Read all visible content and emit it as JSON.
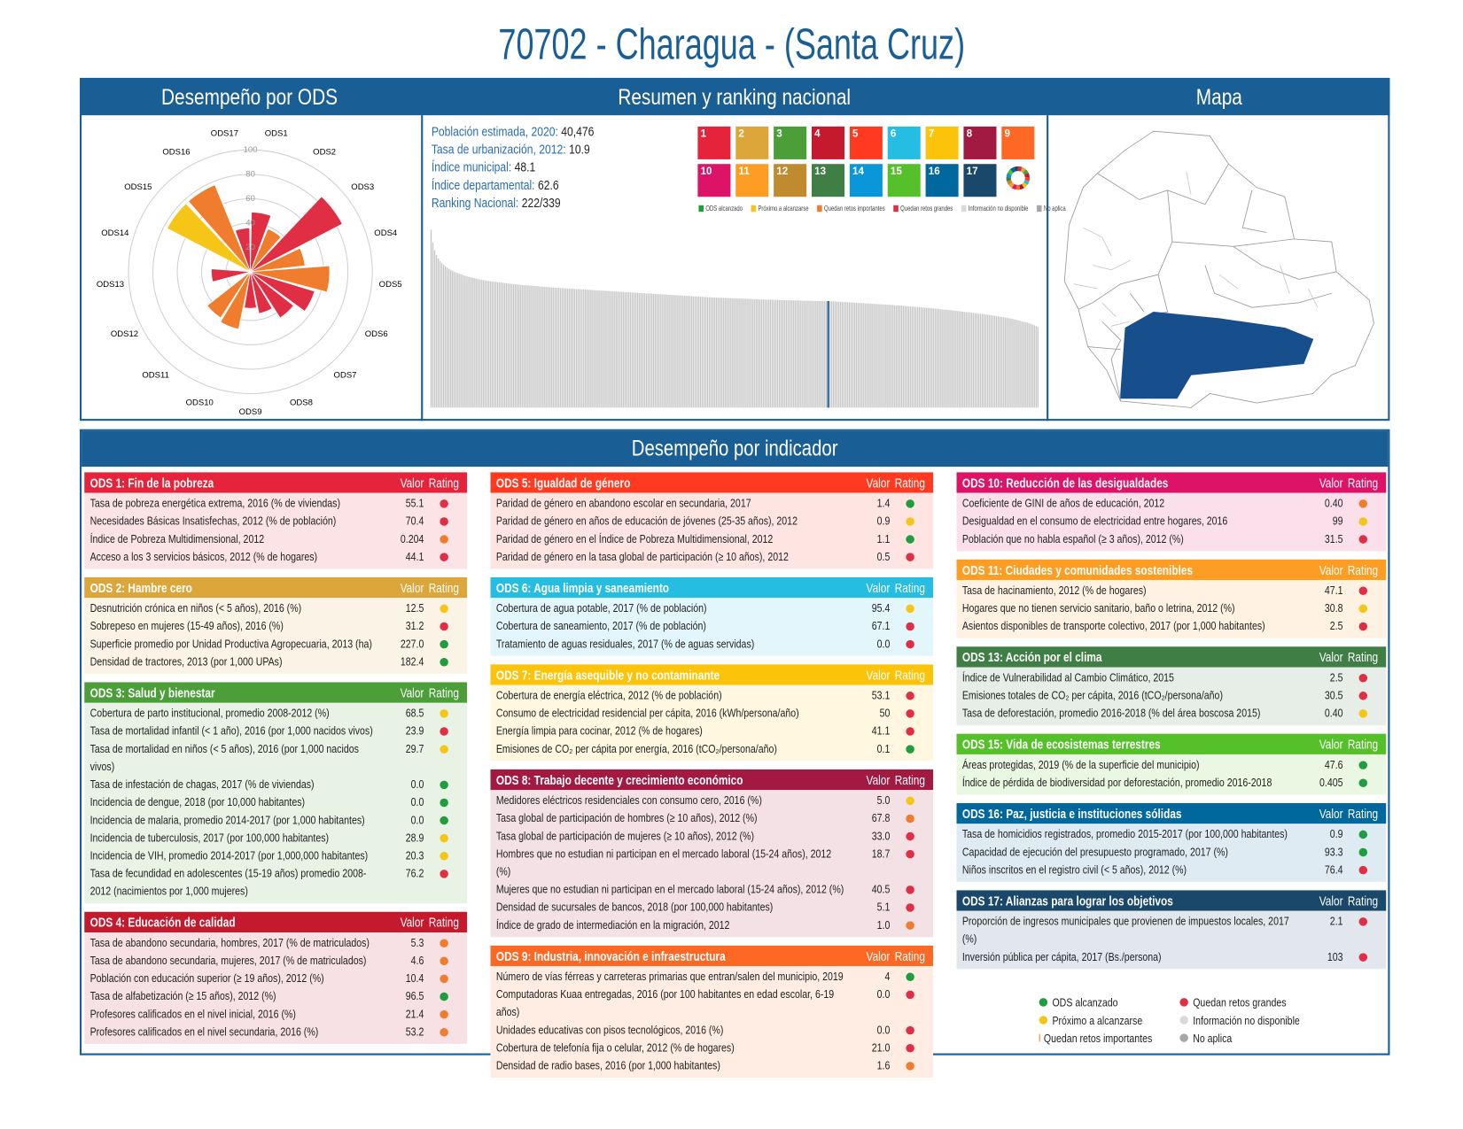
{
  "header": {
    "title": "70702 - Charagua - (Santa Cruz)"
  },
  "panels": {
    "ods": "Desempeño por ODS",
    "summary": "Resumen y ranking nacional",
    "map": "Mapa",
    "indicators": "Desempeño por indicador"
  },
  "summary": [
    {
      "label": "Población estimada, 2020:",
      "value": "40,476"
    },
    {
      "label": "Tasa de urbanización, 2012:",
      "value": "10.9"
    },
    {
      "label": "Índice municipal:",
      "value": "48.1"
    },
    {
      "label": "Índice departamental:",
      "value": "62.6"
    },
    {
      "label": "Ranking Nacional:",
      "value": "222/339"
    }
  ],
  "sdg_icons": [
    {
      "number": "1",
      "color": "#e5243b"
    },
    {
      "number": "2",
      "color": "#dda63a"
    },
    {
      "number": "3",
      "color": "#4c9f38"
    },
    {
      "number": "4",
      "color": "#c5192d"
    },
    {
      "number": "5",
      "color": "#ff3a21"
    },
    {
      "number": "6",
      "color": "#26bde2"
    },
    {
      "number": "7",
      "color": "#fcc30b"
    },
    {
      "number": "8",
      "color": "#a21942"
    },
    {
      "number": "9",
      "color": "#fd6925"
    },
    {
      "number": "10",
      "color": "#dd1367"
    },
    {
      "number": "11",
      "color": "#fd9d24"
    },
    {
      "number": "12",
      "color": "#bf8b2e"
    },
    {
      "number": "13",
      "color": "#3f7e44"
    },
    {
      "number": "14",
      "color": "#0a97d9"
    },
    {
      "number": "15",
      "color": "#56c02b"
    },
    {
      "number": "16",
      "color": "#00689d"
    },
    {
      "number": "17",
      "color": "#19486a"
    }
  ],
  "legend": [
    {
      "label": "ODS alcanzado",
      "color": "#1e9e3e"
    },
    {
      "label": "Próximo a alcanzarse",
      "color": "#f5c518"
    },
    {
      "label": "Quedan retos importantes",
      "color": "#ef7d2d"
    },
    {
      "label": "Quedan retos grandes",
      "color": "#e02f44"
    },
    {
      "label": "Información no disponible",
      "color": "#d9d9d9"
    },
    {
      "label": "No aplica",
      "color": "#a6a6a6"
    }
  ],
  "chart_data": [
    {
      "type": "polar-bar",
      "categories": [
        "ODS1",
        "ODS2",
        "ODS3",
        "ODS4",
        "ODS5",
        "ODS6",
        "ODS7",
        "ODS8",
        "ODS9",
        "ODS10",
        "ODS11",
        "ODS12",
        "ODS13",
        "ODS14",
        "ODS15",
        "ODS16",
        "ODS17"
      ],
      "values": [
        49,
        38,
        85,
        45,
        65,
        55,
        45,
        35,
        30,
        48,
        45,
        null,
        32,
        null,
        77,
        77,
        36
      ],
      "colors": [
        "#e02f44",
        "#ef7d2d",
        "#e02f44",
        "#ef7d2d",
        "#ef7d2d",
        "#e02f44",
        "#e02f44",
        "#e02f44",
        "#e02f44",
        "#ef7d2d",
        "#ef7d2d",
        null,
        "#e02f44",
        null,
        "#f5c518",
        "#ef7d2d",
        "#e02f44"
      ],
      "ylim": [
        0,
        100
      ],
      "yticks": [
        20,
        40,
        60,
        80,
        100
      ]
    },
    {
      "type": "bar",
      "color": "#c8c8c8",
      "highlight_color": "#1a5e96",
      "ylim": [
        0,
        90
      ],
      "values": [
        80.2,
        74.5,
        71.0,
        68.8,
        67.3,
        66.1,
        65.2,
        64.4,
        63.7,
        63.1,
        62.6,
        62.1,
        61.7,
        61.3,
        60.9,
        60.6,
        60.3,
        60.0,
        59.7,
        59.4,
        59.2,
        59.0,
        58.8,
        58.6,
        58.4,
        58.2,
        58.0,
        57.8,
        57.7,
        57.5,
        57.4,
        57.2,
        57.1,
        57.0,
        56.9,
        56.8,
        56.7,
        56.6,
        56.5,
        56.4,
        56.3,
        56.2,
        56.1,
        56.0,
        55.9,
        55.8,
        55.7,
        55.6,
        55.5,
        55.4,
        55.4,
        55.3,
        55.2,
        55.2,
        55.1,
        55.0,
        55.0,
        54.9,
        54.8,
        54.8,
        54.7,
        54.6,
        54.6,
        54.5,
        54.4,
        54.4,
        54.3,
        54.2,
        54.2,
        54.1,
        54.0,
        54.0,
        53.9,
        53.9,
        53.8,
        53.8,
        53.7,
        53.7,
        53.6,
        53.6,
        53.5,
        53.5,
        53.4,
        53.4,
        53.3,
        53.3,
        53.2,
        53.2,
        53.1,
        53.1,
        53.0,
        53.0,
        52.9,
        52.9,
        52.8,
        52.8,
        52.7,
        52.7,
        52.6,
        52.6,
        52.5,
        52.5,
        52.4,
        52.4,
        52.3,
        52.3,
        52.2,
        52.2,
        52.1,
        52.1,
        52.0,
        52.0,
        51.9,
        51.9,
        51.8,
        51.8,
        51.7,
        51.7,
        51.6,
        51.6,
        51.5,
        51.5,
        51.4,
        51.4,
        51.3,
        51.3,
        51.2,
        51.2,
        51.1,
        51.1,
        51.0,
        51.0,
        50.9,
        50.9,
        50.8,
        50.8,
        50.7,
        50.7,
        50.6,
        50.6,
        50.5,
        50.5,
        50.4,
        50.4,
        50.3,
        50.3,
        50.2,
        50.2,
        50.1,
        50.1,
        50.0,
        50.0,
        49.9,
        49.9,
        49.8,
        49.8,
        49.7,
        49.7,
        49.7,
        49.6,
        49.6,
        49.6,
        49.5,
        49.5,
        49.5,
        49.4,
        49.4,
        49.4,
        49.3,
        49.3,
        49.3,
        49.2,
        49.2,
        49.2,
        49.1,
        49.1,
        49.1,
        49.0,
        49.0,
        49.0,
        48.9,
        48.9,
        48.9,
        48.8,
        48.8,
        48.8,
        48.7,
        48.7,
        48.7,
        48.7,
        48.6,
        48.6,
        48.6,
        48.6,
        48.5,
        48.5,
        48.5,
        48.5,
        48.4,
        48.4,
        48.4,
        48.4,
        48.3,
        48.3,
        48.3,
        48.3,
        48.3,
        48.2,
        48.2,
        48.2,
        48.2,
        48.2,
        48.2,
        48.1,
        48.1,
        48.1,
        48.1,
        48.1,
        48.1,
        48.1,
        48.1,
        48.1,
        48.0,
        48.0,
        47.9,
        47.9,
        47.8,
        47.8,
        47.7,
        47.7,
        47.6,
        47.6,
        47.5,
        47.5,
        47.4,
        47.4,
        47.3,
        47.3,
        47.2,
        47.2,
        47.1,
        47.1,
        47.0,
        47.0,
        46.9,
        46.9,
        46.8,
        46.8,
        46.7,
        46.7,
        46.6,
        46.6,
        46.5,
        46.5,
        46.4,
        46.4,
        46.3,
        46.3,
        46.2,
        46.1,
        46.1,
        46.0,
        46.0,
        45.9,
        45.8,
        45.8,
        45.7,
        45.6,
        45.6,
        45.5,
        45.4,
        45.4,
        45.3,
        45.2,
        45.2,
        45.1,
        45.0,
        44.9,
        44.9,
        44.8,
        44.7,
        44.6,
        44.6,
        44.5,
        44.4,
        44.3,
        44.2,
        44.2,
        44.1,
        44.0,
        43.9,
        43.8,
        43.7,
        43.6,
        43.5,
        43.4,
        43.3,
        43.2,
        43.1,
        43.0,
        42.9,
        42.8,
        42.7,
        42.6,
        42.5,
        42.4,
        42.3,
        42.2,
        42.1,
        42.0,
        41.9,
        41.8,
        41.7,
        41.5,
        41.4,
        41.3,
        41.2,
        41.0,
        40.9,
        40.8,
        40.6,
        40.5,
        40.3,
        40.2,
        40.0,
        39.8,
        39.6,
        39.4,
        39.2,
        39.0,
        38.8,
        38.6,
        38.4,
        38.1,
        37.8,
        37.5,
        37.2,
        36.8,
        36.4
      ]
    }
  ],
  "indicators": {
    "value_header": "Valor",
    "rating_header": "Rating",
    "columns": [
      [
        {
          "title": "ODS 1: Fin de la pobreza",
          "color": "#e5243b",
          "rows": [
            [
              "Tasa de pobreza energética extrema, 2016 (% de viviendas)",
              "55.1",
              "#e02f44"
            ],
            [
              "Necesidades Básicas Insatisfechas, 2012 (% de población)",
              "70.4",
              "#e02f44"
            ],
            [
              "Índice de Pobreza Multidimensional, 2012",
              "0.204",
              "#ef7d2d"
            ],
            [
              "Acceso a los 3 servicios básicos, 2012 (% de hogares)",
              "44.1",
              "#e02f44"
            ]
          ]
        },
        {
          "title": "ODS 2: Hambre cero",
          "color": "#dda63a",
          "rows": [
            [
              "Desnutrición crónica en niños (< 5 años), 2016 (%)",
              "12.5",
              "#f5c518"
            ],
            [
              "Sobrepeso en mujeres (15-49 años), 2016 (%)",
              "31.2",
              "#e02f44"
            ],
            [
              "Superficie promedio por Unidad Productiva Agropecuaria, 2013 (ha)",
              "227.0",
              "#1e9e3e"
            ],
            [
              "Densidad de tractores, 2013 (por 1,000 UPAs)",
              "182.4",
              "#1e9e3e"
            ]
          ]
        },
        {
          "title": "ODS 3: Salud y bienestar",
          "color": "#4c9f38",
          "rows": [
            [
              "Cobertura de parto institucional, promedio 2008-2012 (%)",
              "68.5",
              "#f5c518"
            ],
            [
              "Tasa de mortalidad infantil (< 1 año), 2016 (por 1,000 nacidos vivos)",
              "23.9",
              "#e02f44"
            ],
            [
              "Tasa de mortalidad en niños (< 5 años), 2016 (por 1,000 nacidos vivos)",
              "29.7",
              "#f5c518"
            ],
            [
              "Tasa de infestación de chagas, 2017 (% de viviendas)",
              "0.0",
              "#1e9e3e"
            ],
            [
              "Incidencia de dengue, 2018 (por 10,000 habitantes)",
              "0.0",
              "#1e9e3e"
            ],
            [
              "Incidencia de malaria, promedio 2014-2017 (por 1,000 habitantes)",
              "0.0",
              "#1e9e3e"
            ],
            [
              "Incidencia de tuberculosis, 2017 (por 100,000 habitantes)",
              "28.9",
              "#f5c518"
            ],
            [
              "Incidencia de VIH, promedio 2014-2017 (por 1,000,000 habitantes)",
              "20.3",
              "#f5c518"
            ],
            [
              "Tasa de fecundidad en adolescentes (15-19 años) promedio 2008-2012 (nacimientos por 1,000 mujeres)",
              "76.2",
              "#e02f44"
            ]
          ]
        },
        {
          "title": "ODS 4: Educación de calidad",
          "color": "#c5192d",
          "rows": [
            [
              "Tasa de abandono secundaria, hombres, 2017 (% de matriculados)",
              "5.3",
              "#ef7d2d"
            ],
            [
              "Tasa de abandono secundaria, mujeres, 2017 (% de matriculados)",
              "4.6",
              "#ef7d2d"
            ],
            [
              "Población con educación superior (≥ 19 años), 2012 (%)",
              "10.4",
              "#ef7d2d"
            ],
            [
              "Tasa de alfabetización (≥ 15 años), 2012 (%)",
              "96.5",
              "#1e9e3e"
            ],
            [
              "Profesores calificados en el nivel inicial, 2016 (%)",
              "21.4",
              "#ef7d2d"
            ],
            [
              "Profesores calificados en el nivel secundaria, 2016 (%)",
              "53.2",
              "#ef7d2d"
            ]
          ]
        }
      ],
      [
        {
          "title": "ODS 5: Igualdad de género",
          "color": "#ff3a21",
          "rows": [
            [
              "Paridad de género en abandono escolar en secundaria, 2017",
              "1.4",
              "#1e9e3e"
            ],
            [
              "Paridad de género en años de educación de jóvenes (25-35 años), 2012",
              "0.9",
              "#f5c518"
            ],
            [
              "Paridad de género en el Índice de Pobreza Multidimensional, 2012",
              "1.1",
              "#1e9e3e"
            ],
            [
              "Paridad de género en la tasa global de participación (≥ 10 años), 2012",
              "0.5",
              "#e02f44"
            ]
          ]
        },
        {
          "title": "ODS 6: Agua limpia y saneamiento",
          "color": "#26bde2",
          "rows": [
            [
              "Cobertura de agua potable, 2017 (% de población)",
              "95.4",
              "#f5c518"
            ],
            [
              "Cobertura de saneamiento, 2017 (% de población)",
              "67.1",
              "#e02f44"
            ],
            [
              "Tratamiento de aguas residuales, 2017 (% de aguas servidas)",
              "0.0",
              "#e02f44"
            ]
          ]
        },
        {
          "title": "ODS 7: Energía asequible y no contaminante",
          "color": "#fcc30b",
          "rows": [
            [
              "Cobertura de energía eléctrica, 2012 (% de población)",
              "53.1",
              "#e02f44"
            ],
            [
              "Consumo de electricidad residencial per cápita, 2016 (kWh/persona/año)",
              "50",
              "#e02f44"
            ],
            [
              "Energía limpia para cocinar, 2012 (% de hogares)",
              "41.1",
              "#e02f44"
            ],
            [
              "Emisiones de CO₂ per cápita por energía, 2016 (tCO₂/persona/año)",
              "0.1",
              "#1e9e3e"
            ]
          ]
        },
        {
          "title": "ODS 8: Trabajo decente y crecimiento económico",
          "color": "#a21942",
          "rows": [
            [
              "Medidores eléctricos residenciales con consumo cero, 2016 (%)",
              "5.0",
              "#f5c518"
            ],
            [
              "Tasa global de participación de hombres (≥ 10 años), 2012 (%)",
              "67.8",
              "#ef7d2d"
            ],
            [
              "Tasa global de participación de mujeres (≥ 10 años), 2012 (%)",
              "33.0",
              "#e02f44"
            ],
            [
              "Hombres que no estudian ni participan en el mercado laboral (15-24 años), 2012 (%)",
              "18.7",
              "#e02f44"
            ],
            [
              "Mujeres que no estudian ni participan en el mercado laboral (15-24 años), 2012 (%)",
              "40.5",
              "#e02f44"
            ],
            [
              "Densidad de sucursales de bancos, 2018 (por 100,000 habitantes)",
              "5.1",
              "#e02f44"
            ],
            [
              "Índice de grado de intermediación en la migración, 2012",
              "1.0",
              "#ef7d2d"
            ]
          ]
        },
        {
          "title": "ODS 9: Industria, innovación e infraestructura",
          "color": "#fd6925",
          "rows": [
            [
              "Número de vías férreas y carreteras primarias que entran/salen del municipio, 2019",
              "4",
              "#1e9e3e"
            ],
            [
              "Computadoras Kuaa entregadas, 2016 (por 100 habitantes en edad escolar, 6-19 años)",
              "0.0",
              "#e02f44"
            ],
            [
              "Unidades educativas con pisos tecnológicos, 2016 (%)",
              "0.0",
              "#e02f44"
            ],
            [
              "Cobertura de telefonía fija o celular, 2012 (% de hogares)",
              "21.0",
              "#e02f44"
            ],
            [
              "Densidad de radio bases, 2016 (por 1,000 habitantes)",
              "1.6",
              "#ef7d2d"
            ]
          ]
        }
      ],
      [
        {
          "title": "ODS 10: Reducción de las desigualdades",
          "color": "#dd1367",
          "rows": [
            [
              "Coeficiente de GINI de años de educación, 2012",
              "0.40",
              "#ef7d2d"
            ],
            [
              "Desigualdad en el consumo de electricidad entre hogares, 2016",
              "99",
              "#f5c518"
            ],
            [
              "Población que no habla español (≥ 3 años), 2012 (%)",
              "31.5",
              "#e02f44"
            ]
          ]
        },
        {
          "title": "ODS 11: Ciudades y comunidades sostenibles",
          "color": "#fd9d24",
          "rows": [
            [
              "Tasa de hacinamiento, 2012 (% de hogares)",
              "47.1",
              "#e02f44"
            ],
            [
              "Hogares que no tienen servicio sanitario, baño o letrina, 2012 (%)",
              "30.8",
              "#f5c518"
            ],
            [
              "Asientos disponibles de transporte colectivo, 2017 (por 1,000 habitantes)",
              "2.5",
              "#e02f44"
            ]
          ]
        },
        {
          "title": "ODS 13: Acción por el clima",
          "color": "#3f7e44",
          "rows": [
            [
              "Índice de Vulnerabilidad al Cambio Climático, 2015",
              "2.5",
              "#e02f44"
            ],
            [
              "Emisiones totales de CO₂ per cápita, 2016 (tCO₂/persona/año)",
              "30.5",
              "#e02f44"
            ],
            [
              "Tasa de deforestación, promedio 2016-2018 (% del área boscosa 2015)",
              "0.40",
              "#f5c518"
            ]
          ]
        },
        {
          "title": "ODS 15: Vida de ecosistemas terrestres",
          "color": "#56c02b",
          "rows": [
            [
              "Áreas protegidas, 2019 (% de la superficie del municipio)",
              "47.6",
              "#1e9e3e"
            ],
            [
              "Índice de pérdida de biodiversidad por deforestación, promedio 2016-2018",
              "0.405",
              "#1e9e3e"
            ]
          ]
        },
        {
          "title": "ODS 16: Paz, justicia e instituciones sólidas",
          "color": "#00689d",
          "rows": [
            [
              "Tasa de homicidios registrados, promedio 2015-2017 (por 100,000 habitantes)",
              "0.9",
              "#1e9e3e"
            ],
            [
              "Capacidad de ejecución del presupuesto programado, 2017 (%)",
              "93.3",
              "#1e9e3e"
            ],
            [
              "Niños inscritos en el registro civil (< 5 años), 2012 (%)",
              "76.4",
              "#e02f44"
            ]
          ]
        },
        {
          "title": "ODS 17: Alianzas para lograr los objetivos",
          "color": "#19486a",
          "rows": [
            [
              "Proporción de ingresos municipales que provienen de impuestos locales, 2017 (%)",
              "2.1",
              "#e02f44"
            ],
            [
              "Inversión pública per cápita, 2017 (Bs./persona)",
              "103",
              "#e02f44"
            ]
          ]
        }
      ]
    ]
  }
}
